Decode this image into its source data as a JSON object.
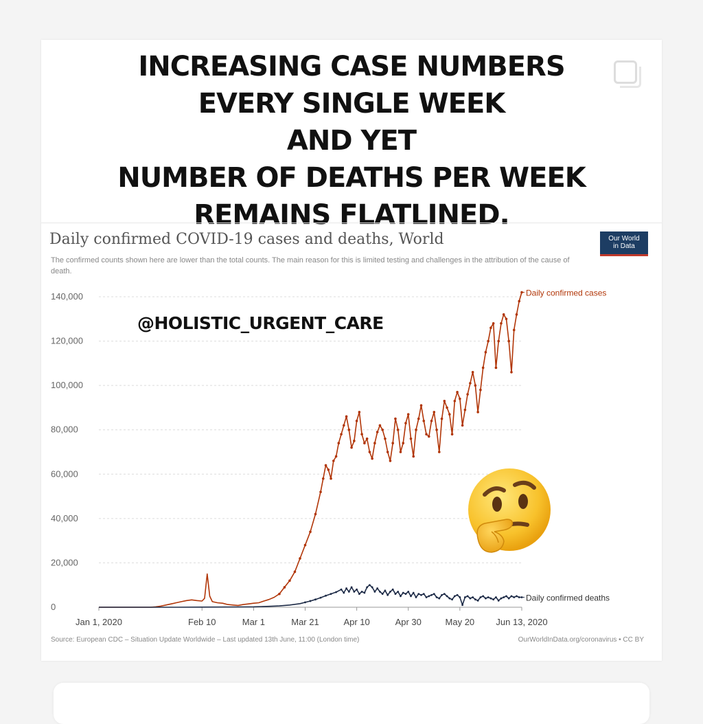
{
  "headline": {
    "lines": [
      "INCREASING CASE NUMBERS",
      "EVERY SINGLE WEEK",
      "AND YET",
      "NUMBER OF DEATHS PER WEEK",
      "REMAINS FLATLINED."
    ]
  },
  "watermark": "@HOLISTIC_URGENT_CARE",
  "logo": {
    "line1": "Our World",
    "line2": "in Data"
  },
  "chart_data": {
    "type": "line",
    "title": "Daily confirmed COVID-19 cases and deaths, World",
    "subtitle": "The confirmed counts shown here are lower than the total counts. The main reason for this is limited testing and challenges in the attribution of the cause of death.",
    "ylim": [
      0,
      140000
    ],
    "yticks": [
      {
        "value": 0,
        "label": "0"
      },
      {
        "value": 20000,
        "label": "20,000"
      },
      {
        "value": 40000,
        "label": "40,000"
      },
      {
        "value": 60000,
        "label": "60,000"
      },
      {
        "value": 80000,
        "label": "80,000"
      },
      {
        "value": 100000,
        "label": "100,000"
      },
      {
        "value": 120000,
        "label": "120,000"
      },
      {
        "value": 140000,
        "label": "140,000"
      }
    ],
    "xticks": [
      {
        "day": 0,
        "label": "Jan 1, 2020"
      },
      {
        "day": 40,
        "label": "Feb 10"
      },
      {
        "day": 60,
        "label": "Mar 1"
      },
      {
        "day": 80,
        "label": "Mar 21"
      },
      {
        "day": 100,
        "label": "Apr 10"
      },
      {
        "day": 120,
        "label": "Apr 30"
      },
      {
        "day": 140,
        "label": "May 20"
      },
      {
        "day": 164,
        "label": "Jun 13, 2020"
      }
    ],
    "grid": true,
    "series": [
      {
        "name": "Daily confirmed cases",
        "color": "#b13507",
        "points": [
          [
            0,
            0
          ],
          [
            5,
            0
          ],
          [
            10,
            0
          ],
          [
            15,
            0
          ],
          [
            20,
            0
          ],
          [
            22,
            200
          ],
          [
            24,
            500
          ],
          [
            26,
            1000
          ],
          [
            28,
            1500
          ],
          [
            30,
            2000
          ],
          [
            32,
            2500
          ],
          [
            34,
            3000
          ],
          [
            36,
            3300
          ],
          [
            38,
            3000
          ],
          [
            40,
            2800
          ],
          [
            41,
            4000
          ],
          [
            42,
            15000
          ],
          [
            43,
            5000
          ],
          [
            44,
            2500
          ],
          [
            46,
            2000
          ],
          [
            48,
            1800
          ],
          [
            50,
            1200
          ],
          [
            52,
            1000
          ],
          [
            54,
            800
          ],
          [
            56,
            1200
          ],
          [
            58,
            1500
          ],
          [
            60,
            1800
          ],
          [
            62,
            2000
          ],
          [
            64,
            2800
          ],
          [
            66,
            3500
          ],
          [
            68,
            4500
          ],
          [
            70,
            6000
          ],
          [
            72,
            9000
          ],
          [
            74,
            12000
          ],
          [
            76,
            16000
          ],
          [
            78,
            22000
          ],
          [
            80,
            28000
          ],
          [
            82,
            34000
          ],
          [
            84,
            42000
          ],
          [
            86,
            52000
          ],
          [
            87,
            58000
          ],
          [
            88,
            64000
          ],
          [
            89,
            62000
          ],
          [
            90,
            58000
          ],
          [
            91,
            66000
          ],
          [
            92,
            68000
          ],
          [
            93,
            74000
          ],
          [
            94,
            78000
          ],
          [
            95,
            82000
          ],
          [
            96,
            86000
          ],
          [
            97,
            80000
          ],
          [
            98,
            72000
          ],
          [
            99,
            75000
          ],
          [
            100,
            84000
          ],
          [
            101,
            88000
          ],
          [
            102,
            78000
          ],
          [
            103,
            74000
          ],
          [
            104,
            76000
          ],
          [
            105,
            70000
          ],
          [
            106,
            67000
          ],
          [
            107,
            74000
          ],
          [
            108,
            79000
          ],
          [
            109,
            82000
          ],
          [
            110,
            80000
          ],
          [
            111,
            76000
          ],
          [
            112,
            70000
          ],
          [
            113,
            66000
          ],
          [
            114,
            74000
          ],
          [
            115,
            85000
          ],
          [
            116,
            80000
          ],
          [
            117,
            70000
          ],
          [
            118,
            74000
          ],
          [
            119,
            83000
          ],
          [
            120,
            87000
          ],
          [
            121,
            76000
          ],
          [
            122,
            68000
          ],
          [
            123,
            80000
          ],
          [
            124,
            85000
          ],
          [
            125,
            91000
          ],
          [
            126,
            84000
          ],
          [
            127,
            78000
          ],
          [
            128,
            77000
          ],
          [
            129,
            84000
          ],
          [
            130,
            88000
          ],
          [
            131,
            80000
          ],
          [
            132,
            70000
          ],
          [
            133,
            85000
          ],
          [
            134,
            93000
          ],
          [
            135,
            90000
          ],
          [
            136,
            87000
          ],
          [
            137,
            78000
          ],
          [
            138,
            93000
          ],
          [
            139,
            97000
          ],
          [
            140,
            94000
          ],
          [
            141,
            82000
          ],
          [
            142,
            89000
          ],
          [
            143,
            96000
          ],
          [
            144,
            101000
          ],
          [
            145,
            106000
          ],
          [
            146,
            100000
          ],
          [
            147,
            88000
          ],
          [
            148,
            98000
          ],
          [
            149,
            108000
          ],
          [
            150,
            115000
          ],
          [
            151,
            120000
          ],
          [
            152,
            126000
          ],
          [
            153,
            128000
          ],
          [
            154,
            108000
          ],
          [
            155,
            120000
          ],
          [
            156,
            128000
          ],
          [
            157,
            132000
          ],
          [
            158,
            130000
          ],
          [
            159,
            120000
          ],
          [
            160,
            106000
          ],
          [
            161,
            125000
          ],
          [
            162,
            132000
          ],
          [
            163,
            138000
          ],
          [
            164,
            142000
          ]
        ]
      },
      {
        "name": "Daily confirmed deaths",
        "color": "#1c2a46",
        "points": [
          [
            0,
            0
          ],
          [
            30,
            0
          ],
          [
            40,
            50
          ],
          [
            50,
            100
          ],
          [
            60,
            200
          ],
          [
            66,
            400
          ],
          [
            70,
            600
          ],
          [
            74,
            1000
          ],
          [
            78,
            1600
          ],
          [
            80,
            2200
          ],
          [
            82,
            2800
          ],
          [
            84,
            3500
          ],
          [
            86,
            4300
          ],
          [
            88,
            5200
          ],
          [
            90,
            6000
          ],
          [
            92,
            6800
          ],
          [
            94,
            8000
          ],
          [
            95,
            6500
          ],
          [
            96,
            8500
          ],
          [
            97,
            7000
          ],
          [
            98,
            9000
          ],
          [
            99,
            7000
          ],
          [
            100,
            8000
          ],
          [
            101,
            6000
          ],
          [
            102,
            7000
          ],
          [
            103,
            6500
          ],
          [
            104,
            9000
          ],
          [
            105,
            10000
          ],
          [
            106,
            9000
          ],
          [
            107,
            7000
          ],
          [
            108,
            8500
          ],
          [
            109,
            7000
          ],
          [
            110,
            6000
          ],
          [
            111,
            7500
          ],
          [
            112,
            5500
          ],
          [
            113,
            7000
          ],
          [
            114,
            8000
          ],
          [
            115,
            6000
          ],
          [
            116,
            7000
          ],
          [
            117,
            5000
          ],
          [
            118,
            6500
          ],
          [
            119,
            6000
          ],
          [
            120,
            7000
          ],
          [
            121,
            5000
          ],
          [
            122,
            6500
          ],
          [
            123,
            4500
          ],
          [
            124,
            6000
          ],
          [
            125,
            5500
          ],
          [
            126,
            6000
          ],
          [
            127,
            4500
          ],
          [
            128,
            5000
          ],
          [
            129,
            5500
          ],
          [
            130,
            6000
          ],
          [
            131,
            4500
          ],
          [
            132,
            4000
          ],
          [
            133,
            5500
          ],
          [
            134,
            6000
          ],
          [
            135,
            5000
          ],
          [
            136,
            4000
          ],
          [
            137,
            3500
          ],
          [
            138,
            5000
          ],
          [
            139,
            5500
          ],
          [
            140,
            4500
          ],
          [
            141,
            1000
          ],
          [
            142,
            4500
          ],
          [
            143,
            5000
          ],
          [
            144,
            4000
          ],
          [
            145,
            4500
          ],
          [
            146,
            3500
          ],
          [
            147,
            3000
          ],
          [
            148,
            4500
          ],
          [
            149,
            5000
          ],
          [
            150,
            4000
          ],
          [
            151,
            4500
          ],
          [
            152,
            4000
          ],
          [
            153,
            3500
          ],
          [
            154,
            4500
          ],
          [
            155,
            3000
          ],
          [
            156,
            4000
          ],
          [
            157,
            4500
          ],
          [
            158,
            5000
          ],
          [
            159,
            4000
          ],
          [
            160,
            5000
          ],
          [
            161,
            4500
          ],
          [
            162,
            5000
          ],
          [
            163,
            4500
          ],
          [
            164,
            4500
          ]
        ]
      }
    ],
    "source": "Source: European CDC – Situation Update Worldwide – Last updated 13th June, 11:00 (London time)",
    "credit": "OurWorldInData.org/coronavirus • CC BY"
  },
  "emoji": "thinking-face"
}
